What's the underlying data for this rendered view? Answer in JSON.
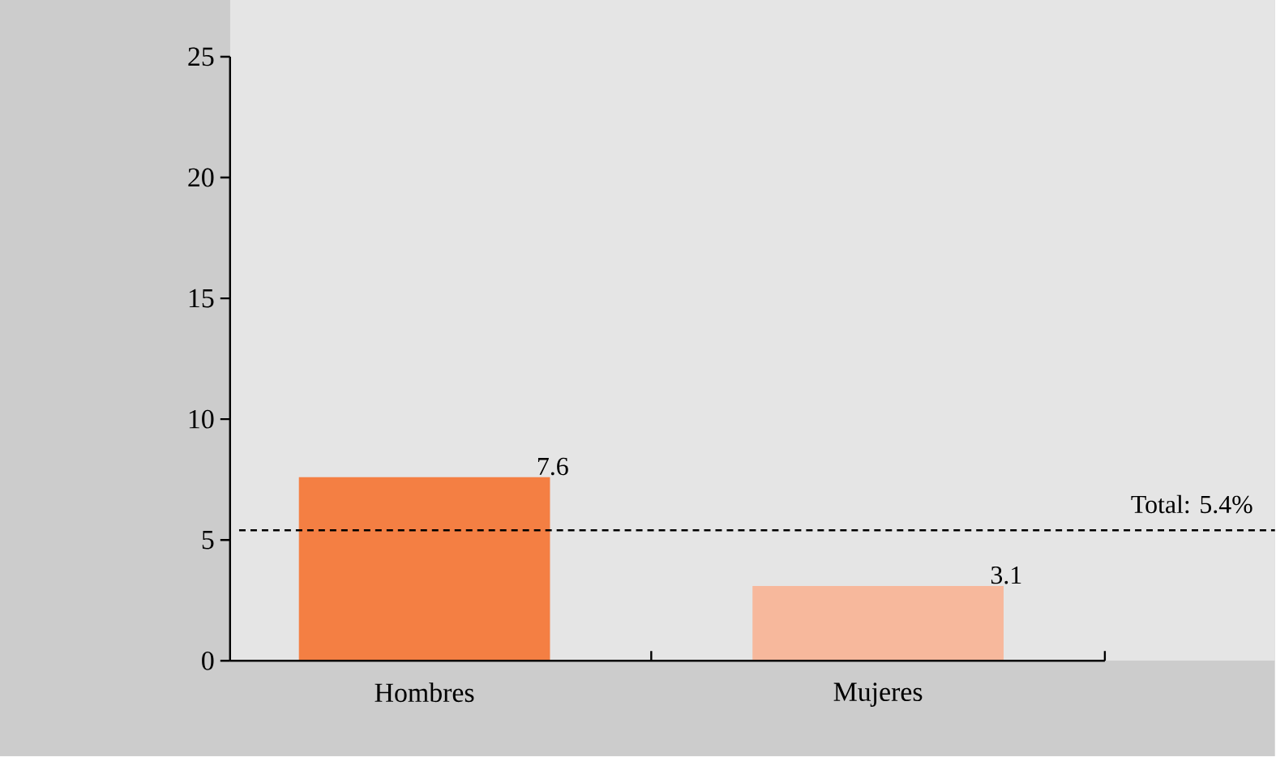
{
  "chart_data": {
    "type": "bar",
    "categories": [
      "Hombres",
      "Mujeres"
    ],
    "values": [
      7.6,
      3.1
    ],
    "colors": [
      "#f47f43",
      "#f7b89c"
    ],
    "ylim": [
      0,
      25
    ],
    "yticks": [
      0,
      5,
      10,
      15,
      20,
      25
    ],
    "data_labels": true,
    "ref_lines": [
      {
        "axis": "y",
        "value": 5.4,
        "label": "Total: 5.4%",
        "color": "#000000",
        "line_style": "dashed"
      }
    ],
    "grid": false
  }
}
